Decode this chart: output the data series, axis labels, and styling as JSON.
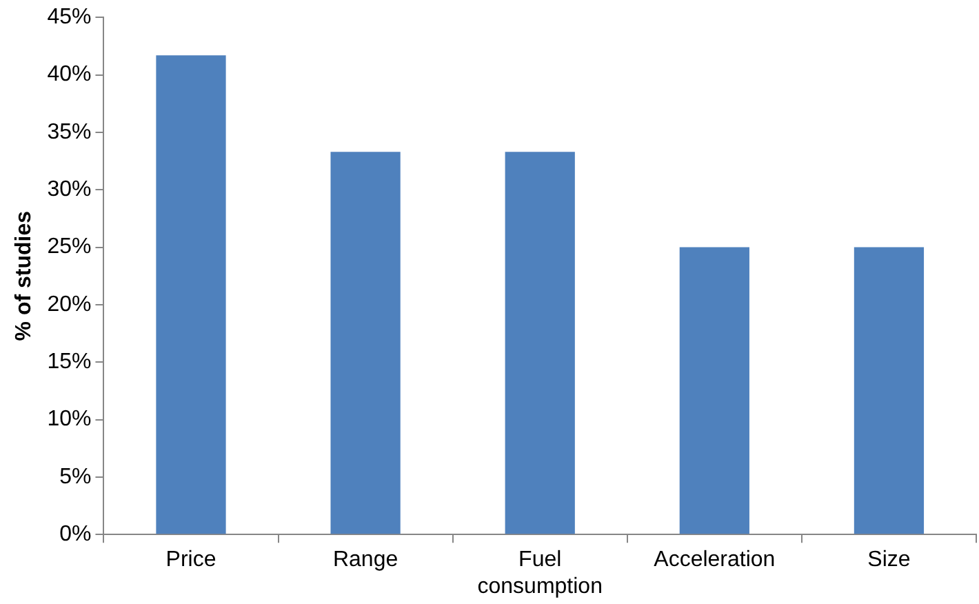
{
  "chart_data": {
    "type": "bar",
    "ylabel": "% of studies",
    "categories": [
      "Price",
      "Range",
      "Fuel consumption",
      "Acceleration",
      "Size"
    ],
    "values": [
      41.7,
      33.3,
      33.3,
      25,
      25
    ],
    "color": "#4f81bd",
    "ylim": [
      0,
      45
    ],
    "yticks": [
      {
        "value": 0,
        "label": "0%"
      },
      {
        "value": 5,
        "label": "5%"
      },
      {
        "value": 10,
        "label": "10%"
      },
      {
        "value": 15,
        "label": "15%"
      },
      {
        "value": 20,
        "label": "20%"
      },
      {
        "value": 25,
        "label": "25%"
      },
      {
        "value": 30,
        "label": "30%"
      },
      {
        "value": 35,
        "label": "35%"
      },
      {
        "value": 40,
        "label": "40%"
      },
      {
        "value": 45,
        "label": "45%"
      }
    ],
    "grid": false,
    "legend": false
  }
}
